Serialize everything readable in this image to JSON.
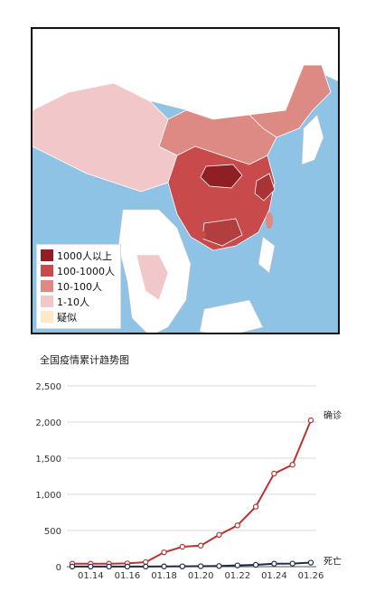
{
  "map": {
    "legend": [
      {
        "label": "1000人以上",
        "color": "#8f1f24"
      },
      {
        "label": "100-1000人",
        "color": "#c84a4a"
      },
      {
        "label": "10-100人",
        "color": "#dd8a85"
      },
      {
        "label": "1-10人",
        "color": "#f2c7c9"
      },
      {
        "label": "疑似",
        "color": "#fde9c8"
      }
    ],
    "colors": {
      "sea": "#8fc3e6",
      "land": "#ffffff",
      "island": "#dfe6c9"
    }
  },
  "chart_data": {
    "type": "line",
    "title": "全国疫情累计趋势图",
    "x": [
      "01.13",
      "01.14",
      "01.15",
      "01.16",
      "01.17",
      "01.18",
      "01.19",
      "01.20",
      "01.21",
      "01.22",
      "01.23",
      "01.24",
      "01.25",
      "01.26"
    ],
    "x_tick_labels": [
      "01.14",
      "01.16",
      "01.18",
      "01.20",
      "01.22",
      "01.24",
      "01.26"
    ],
    "series": [
      {
        "name": "确诊",
        "color": "#b73532",
        "values": [
          41,
          41,
          41,
          45,
          62,
          198,
          275,
          291,
          440,
          571,
          830,
          1287,
          1410,
          2024
        ]
      },
      {
        "name": "死亡",
        "color": "#1f2a44",
        "values": [
          1,
          1,
          2,
          2,
          2,
          3,
          4,
          6,
          9,
          17,
          25,
          41,
          42,
          56
        ]
      }
    ],
    "y_ticks": [
      "0",
      "500",
      "1,000",
      "1,500",
      "2,000",
      "2,500"
    ],
    "ylim": [
      0,
      2500
    ],
    "grid": true
  }
}
